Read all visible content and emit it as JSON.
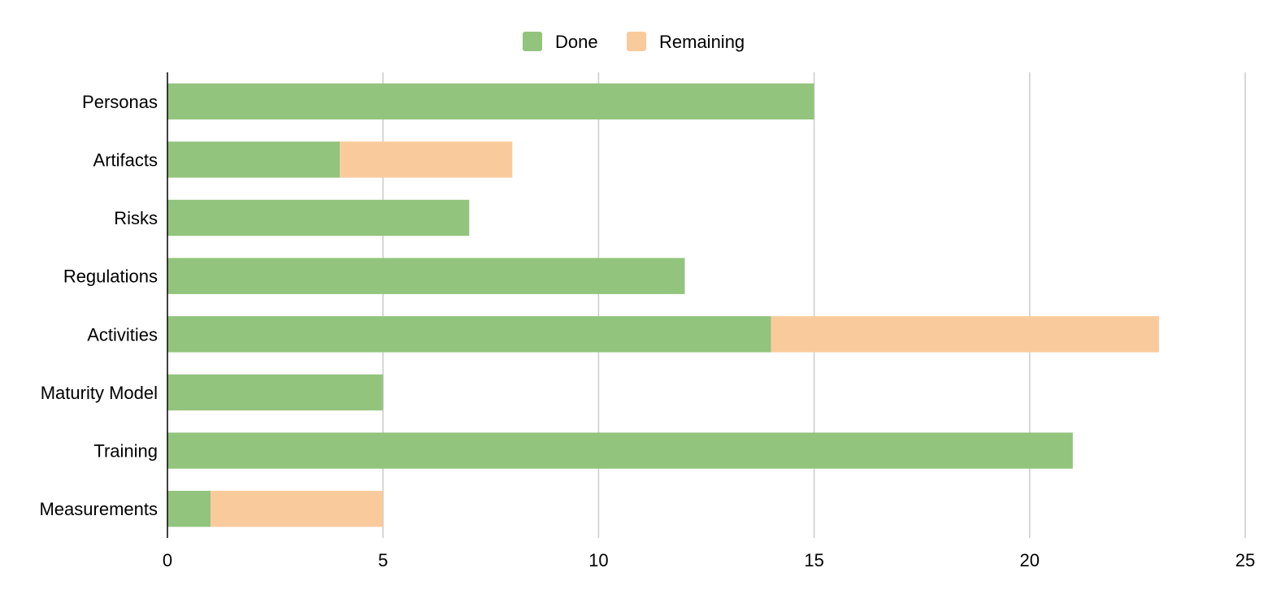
{
  "chart_data": {
    "type": "bar",
    "orientation": "horizontal",
    "stacked": true,
    "categories": [
      "Personas",
      "Artifacts",
      "Risks",
      "Regulations",
      "Activities",
      "Maturity Model",
      "Training",
      "Measurements"
    ],
    "series": [
      {
        "name": "Done",
        "color": "#93c47d",
        "values": [
          15,
          4,
          7,
          12,
          14,
          5,
          21,
          1
        ]
      },
      {
        "name": "Remaining",
        "color": "#f9cb9c",
        "values": [
          0,
          4,
          0,
          0,
          9,
          0,
          0,
          4
        ]
      }
    ],
    "xlim": [
      0,
      25
    ],
    "xticks": [
      0,
      5,
      10,
      15,
      20,
      25
    ],
    "grid": true,
    "legend_position": "top-center"
  }
}
